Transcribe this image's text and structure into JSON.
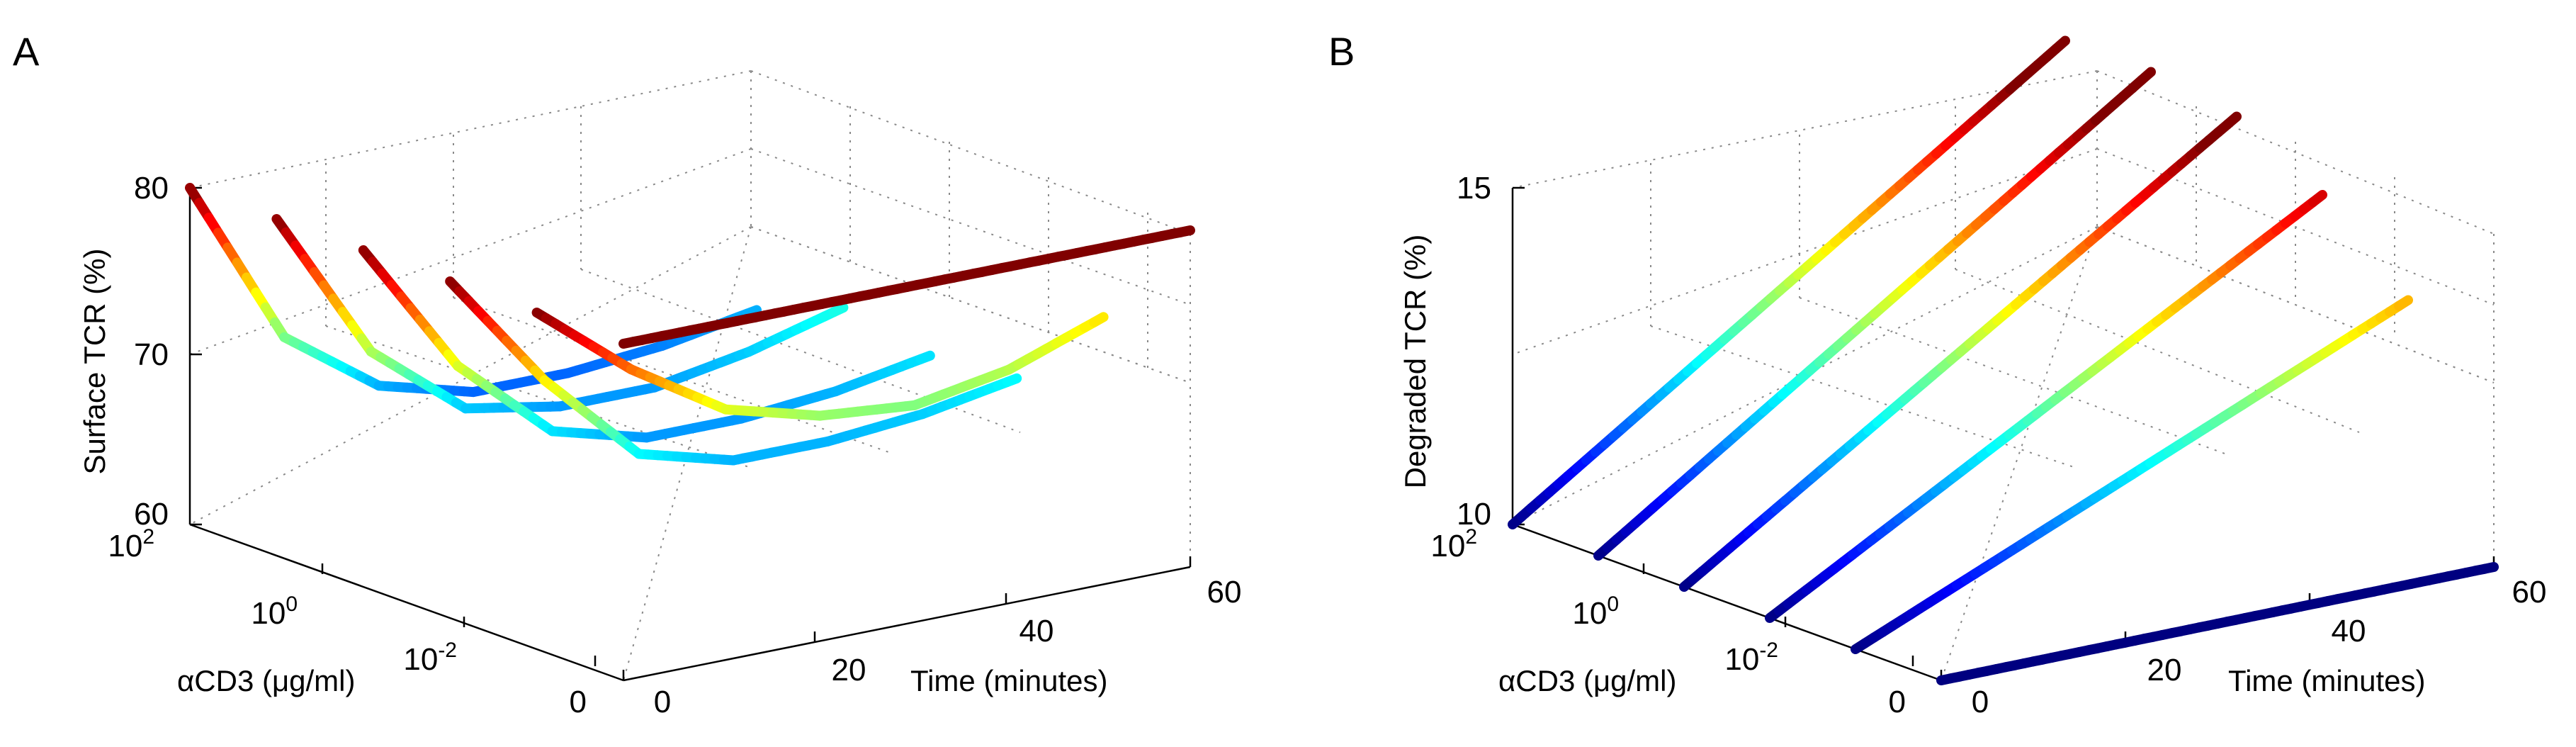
{
  "panels": [
    {
      "letter": "A"
    },
    {
      "letter": "B"
    }
  ],
  "chart_data": [
    {
      "type": "line3d",
      "panel": "A",
      "zlabel": "Surface TCR (%)",
      "xlabel": "Time (minutes)",
      "ylabel": "αCD3 (μg/ml)",
      "zlim": [
        60,
        80
      ],
      "xlim": [
        0,
        60
      ],
      "z_ticks": [
        "60",
        "70",
        "80"
      ],
      "x_ticks": [
        "0",
        "20",
        "40",
        "60"
      ],
      "y_ticks": [
        {
          "base": "0",
          "exp": ""
        },
        {
          "base": "10",
          "exp": "-2"
        },
        {
          "base": "10",
          "exp": "0"
        },
        {
          "base": "10",
          "exp": "2"
        }
      ],
      "series": [
        {
          "dose": "10^2",
          "time": [
            0,
            10,
            20,
            30,
            40,
            50,
            60
          ],
          "values": [
            80.0,
            70.0,
            66.0,
            64.5,
            64.5,
            65.0,
            66.0
          ]
        },
        {
          "dose": "10^1",
          "time": [
            0,
            10,
            20,
            30,
            40,
            50,
            60
          ],
          "values": [
            80.0,
            71.0,
            66.5,
            65.5,
            65.5,
            66.5,
            68.0
          ]
        },
        {
          "dose": "10^0",
          "time": [
            0,
            10,
            20,
            30,
            40,
            50,
            60
          ],
          "values": [
            80.0,
            72.0,
            67.0,
            65.5,
            65.5,
            66.0,
            67.0
          ]
        },
        {
          "dose": "10^-1",
          "time": [
            0,
            10,
            20,
            30,
            40,
            50,
            60
          ],
          "values": [
            80.0,
            73.0,
            67.5,
            66.0,
            66.0,
            66.5,
            67.5
          ]
        },
        {
          "dose": "10^-2",
          "time": [
            0,
            10,
            20,
            30,
            40,
            50,
            60
          ],
          "values": [
            80.0,
            75.5,
            72.0,
            70.5,
            70.0,
            71.0,
            73.0
          ]
        },
        {
          "dose": "0",
          "time": [
            0,
            60
          ],
          "values": [
            80.0,
            80.0
          ]
        }
      ]
    },
    {
      "type": "line3d",
      "panel": "B",
      "zlabel": "Degraded TCR (%)",
      "xlabel": "Time (minutes)",
      "ylabel": "αCD3 (μg/ml)",
      "zlim": [
        10,
        15
      ],
      "xlim": [
        0,
        60
      ],
      "z_ticks": [
        "10",
        "15"
      ],
      "x_ticks": [
        "0",
        "20",
        "40",
        "60"
      ],
      "y_ticks": [
        {
          "base": "0",
          "exp": ""
        },
        {
          "base": "10",
          "exp": "-2"
        },
        {
          "base": "10",
          "exp": "0"
        },
        {
          "base": "10",
          "exp": "2"
        }
      ],
      "series": [
        {
          "dose": "10^2",
          "time": [
            0,
            60
          ],
          "values": [
            10.0,
            15.5
          ]
        },
        {
          "dose": "10^1",
          "time": [
            0,
            60
          ],
          "values": [
            10.0,
            15.5
          ]
        },
        {
          "dose": "10^0",
          "time": [
            0,
            60
          ],
          "values": [
            10.0,
            15.3
          ]
        },
        {
          "dose": "10^-1",
          "time": [
            0,
            60
          ],
          "values": [
            10.0,
            14.6
          ]
        },
        {
          "dose": "10^-2",
          "time": [
            0,
            60
          ],
          "values": [
            10.0,
            13.5
          ]
        },
        {
          "dose": "0",
          "time": [
            0,
            60
          ],
          "values": [
            10.0,
            10.0
          ]
        }
      ]
    }
  ]
}
